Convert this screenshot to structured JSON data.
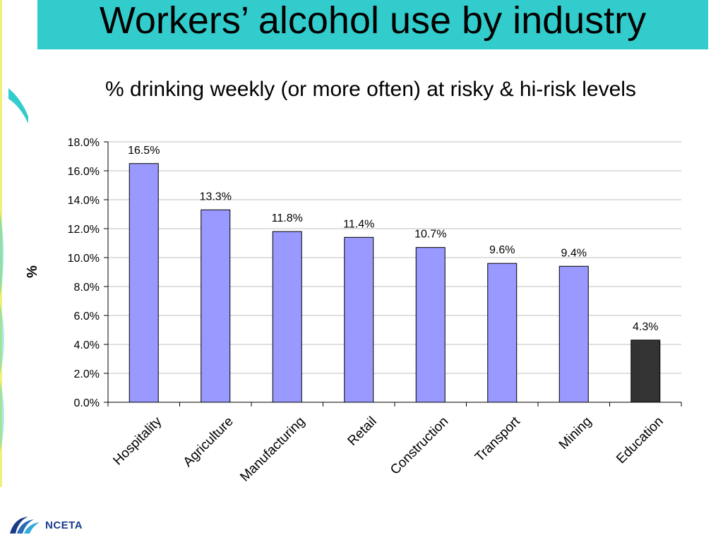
{
  "header": {
    "title": "Workers’ alcohol use by industry"
  },
  "footer": {
    "logo_text": "NCETA"
  },
  "chart_data": {
    "type": "bar",
    "title": "% drinking weekly (or more often) at risky & hi-risk levels",
    "xlabel": "",
    "ylabel": "%",
    "categories": [
      "Hospitality",
      "Agriculture",
      "Manufacturing",
      "Retail",
      "Construction",
      "Transport",
      "Mining",
      "Education"
    ],
    "values": [
      16.5,
      13.3,
      11.8,
      11.4,
      10.7,
      9.6,
      9.4,
      4.3
    ],
    "data_labels": [
      "16.5%",
      "13.3%",
      "11.8%",
      "11.4%",
      "10.7%",
      "9.6%",
      "9.4%",
      "4.3%"
    ],
    "ylim": [
      0,
      18
    ],
    "yticks": [
      0,
      2,
      4,
      6,
      8,
      10,
      12,
      14,
      16,
      18
    ],
    "ytick_labels": [
      "0.0%",
      "2.0%",
      "4.0%",
      "6.0%",
      "8.0%",
      "10.0%",
      "12.0%",
      "14.0%",
      "16.0%",
      "18.0%"
    ],
    "grid": true,
    "legend": "none",
    "colors": {
      "bar": "#9999ff",
      "highlight": "#333333",
      "grid": "#bfbfbf",
      "axis": "#000000"
    },
    "highlight_index": 7
  }
}
